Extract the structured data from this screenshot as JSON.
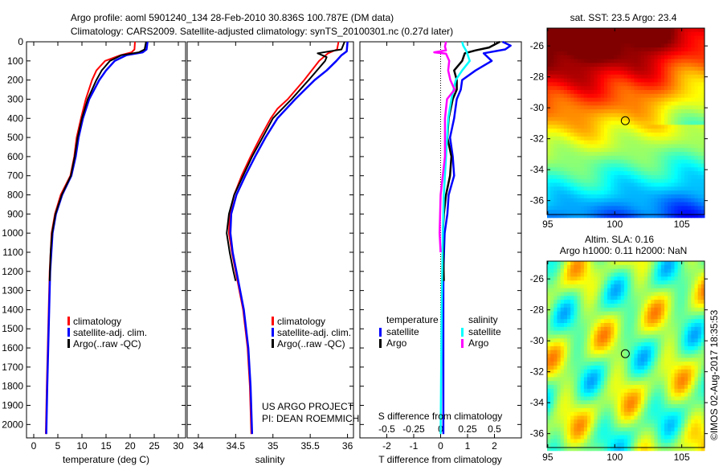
{
  "title_line1": "Argo profile: aoml 5901240_134 28-Feb-2010 30.836S 100.787E (DM data)",
  "title_line2": "Climatology: CARS2009. Satellite-adjusted climatology: synTS_20100301.nc (0.27d later)",
  "colors": {
    "climatology": "#ff0000",
    "satellite": "#0000ff",
    "argo": "#000000",
    "sal_satellite": "#00ffff",
    "sal_argo": "#ff00ff"
  },
  "chart_data": [
    {
      "type": "line",
      "name": "temperature-profile",
      "xlabel": "temperature (deg C)",
      "ylabel": "depth",
      "xlim": [
        -1.5,
        31.5
      ],
      "ylim": [
        2070,
        0
      ],
      "xticks": [
        0,
        5,
        10,
        15,
        20,
        25,
        30
      ],
      "yticks": [
        0,
        100,
        200,
        300,
        400,
        500,
        600,
        700,
        800,
        900,
        1000,
        1100,
        1200,
        1300,
        1400,
        1500,
        1600,
        1700,
        1800,
        1900,
        2000
      ],
      "legend": [
        "climatology",
        "satellite-adj. clim.",
        "Argo(..raw -QC)"
      ],
      "series": [
        {
          "name": "climatology",
          "color": "#ff0000",
          "points": [
            [
              0,
              21.0
            ],
            [
              40,
              20.9
            ],
            [
              55,
              20.3
            ],
            [
              70,
              18
            ],
            [
              100,
              14.8
            ],
            [
              150,
              13.0
            ],
            [
              200,
              12.1
            ],
            [
              300,
              10.8
            ],
            [
              400,
              9.8
            ],
            [
              500,
              8.9
            ],
            [
              600,
              8.4
            ],
            [
              700,
              7.6
            ],
            [
              800,
              5.6
            ],
            [
              900,
              4.4
            ],
            [
              1000,
              3.7
            ],
            [
              1200,
              3.3
            ],
            [
              1500,
              3.0
            ],
            [
              1800,
              2.7
            ],
            [
              2050,
              2.5
            ]
          ]
        },
        {
          "name": "satellite-adj. clim.",
          "color": "#0000ff",
          "points": [
            [
              0,
              23.6
            ],
            [
              40,
              23.4
            ],
            [
              55,
              22.6
            ],
            [
              70,
              19.2
            ],
            [
              100,
              16.8
            ],
            [
              150,
              15.0
            ],
            [
              200,
              13.6
            ],
            [
              300,
              11.5
            ],
            [
              400,
              10.2
            ],
            [
              500,
              9.3
            ],
            [
              600,
              8.7
            ],
            [
              700,
              7.8
            ],
            [
              800,
              5.9
            ],
            [
              900,
              4.6
            ],
            [
              1000,
              3.9
            ],
            [
              1200,
              3.4
            ],
            [
              1500,
              3.1
            ],
            [
              1800,
              2.8
            ],
            [
              2050,
              2.6
            ]
          ]
        },
        {
          "name": "Argo(..raw -QC)",
          "color": "#000000",
          "points": [
            [
              0,
              23.3
            ],
            [
              40,
              23.0
            ],
            [
              55,
              21.8
            ],
            [
              70,
              18.2
            ],
            [
              100,
              15.8
            ],
            [
              150,
              14.1
            ],
            [
              200,
              13.0
            ],
            [
              300,
              11.2
            ],
            [
              400,
              10.0
            ],
            [
              500,
              9.1
            ],
            [
              600,
              8.5
            ],
            [
              700,
              7.7
            ],
            [
              800,
              5.8
            ],
            [
              900,
              4.5
            ],
            [
              1000,
              3.8
            ],
            [
              1100,
              3.5
            ],
            [
              1250,
              3.3
            ]
          ]
        }
      ]
    },
    {
      "type": "line",
      "name": "salinity-profile",
      "xlabel": "salinity",
      "xlim": [
        33.85,
        36.08
      ],
      "ylim": [
        2070,
        0
      ],
      "xticks": [
        34,
        34.5,
        35,
        35.5,
        36
      ],
      "legend": [
        "climatology",
        "satellite-adj. clim.",
        "Argo(..raw -QC)"
      ],
      "annotation": [
        "US ARGO PROJECT",
        "PI: DEAN ROEMMICH"
      ],
      "series": [
        {
          "name": "climatology",
          "color": "#ff0000",
          "points": [
            [
              0,
              35.88
            ],
            [
              40,
              35.86
            ],
            [
              60,
              35.74
            ],
            [
              100,
              35.62
            ],
            [
              200,
              35.42
            ],
            [
              300,
              35.2
            ],
            [
              350,
              35.06
            ],
            [
              400,
              34.97
            ],
            [
              500,
              34.83
            ],
            [
              600,
              34.7
            ],
            [
              700,
              34.58
            ],
            [
              800,
              34.48
            ],
            [
              900,
              34.42
            ],
            [
              1000,
              34.41
            ],
            [
              1100,
              34.45
            ],
            [
              1200,
              34.5
            ],
            [
              1400,
              34.6
            ],
            [
              1600,
              34.66
            ],
            [
              1800,
              34.69
            ],
            [
              2050,
              34.71
            ]
          ]
        },
        {
          "name": "satellite-adj. clim.",
          "color": "#0000ff",
          "points": [
            [
              0,
              36.0
            ],
            [
              50,
              35.99
            ],
            [
              70,
              35.92
            ],
            [
              100,
              35.85
            ],
            [
              150,
              35.72
            ],
            [
              200,
              35.56
            ],
            [
              300,
              35.3
            ],
            [
              400,
              35.06
            ],
            [
              500,
              34.9
            ],
            [
              600,
              34.76
            ],
            [
              700,
              34.63
            ],
            [
              800,
              34.51
            ],
            [
              900,
              34.44
            ],
            [
              1000,
              34.43
            ],
            [
              1100,
              34.46
            ],
            [
              1200,
              34.51
            ],
            [
              1400,
              34.61
            ],
            [
              1600,
              34.67
            ],
            [
              1800,
              34.7
            ],
            [
              2050,
              34.72
            ]
          ]
        },
        {
          "name": "Argo(..raw -QC)",
          "color": "#000000",
          "points": [
            [
              0,
              35.96
            ],
            [
              40,
              35.92
            ],
            [
              60,
              35.6
            ],
            [
              80,
              35.72
            ],
            [
              100,
              35.7
            ],
            [
              200,
              35.48
            ],
            [
              300,
              35.25
            ],
            [
              400,
              35.0
            ],
            [
              500,
              34.86
            ],
            [
              600,
              34.72
            ],
            [
              700,
              34.6
            ],
            [
              800,
              34.48
            ],
            [
              900,
              34.41
            ],
            [
              1000,
              34.38
            ],
            [
              1100,
              34.42
            ],
            [
              1200,
              34.47
            ],
            [
              1250,
              34.5
            ]
          ]
        }
      ]
    },
    {
      "type": "line",
      "name": "difference-profile",
      "xlabel": "T difference from climatology",
      "x2label": "S difference from climatology",
      "xlim": [
        -3,
        3
      ],
      "x2lim": [
        -0.75,
        0.75
      ],
      "ylim": [
        2070,
        0
      ],
      "xticks": [
        -2,
        -1,
        0,
        1,
        2
      ],
      "x2ticks": [
        -0.5,
        -0.25,
        0,
        0.25,
        0.5
      ],
      "x2ticklabels": [
        "-0.5",
        "-0.25",
        "0",
        "0.25",
        "0.5"
      ],
      "legend": {
        "temperature_title": "temperature",
        "salinity_title": "salinity",
        "t_satellite": "satellite",
        "t_argo": "Argo",
        "s_satellite": "satellite",
        "s_argo": "Argo"
      },
      "series": [
        {
          "name": "T satellite",
          "axis": "T",
          "color": "#0000ff",
          "points": [
            [
              0,
              2.3
            ],
            [
              20,
              2.6
            ],
            [
              40,
              2.4
            ],
            [
              60,
              1.6
            ],
            [
              100,
              1.9
            ],
            [
              150,
              1.3
            ],
            [
              200,
              0.8
            ],
            [
              250,
              0.75
            ],
            [
              300,
              0.6
            ],
            [
              350,
              0.55
            ],
            [
              400,
              0.5
            ],
            [
              500,
              0.35
            ],
            [
              600,
              0.45
            ],
            [
              700,
              0.5
            ],
            [
              800,
              0.3
            ],
            [
              900,
              0.25
            ],
            [
              1000,
              0.15
            ],
            [
              1200,
              0.1
            ],
            [
              2050,
              0.1
            ]
          ]
        },
        {
          "name": "T Argo",
          "axis": "T",
          "color": "#000000",
          "points": [
            [
              0,
              2.2
            ],
            [
              30,
              1.8
            ],
            [
              45,
              1.3
            ],
            [
              60,
              0.9
            ],
            [
              100,
              0.8
            ],
            [
              150,
              0.5
            ],
            [
              200,
              0.6
            ],
            [
              250,
              0.6
            ],
            [
              300,
              0.45
            ],
            [
              400,
              0.3
            ],
            [
              500,
              0.25
            ],
            [
              600,
              0.4
            ],
            [
              700,
              0.35
            ],
            [
              800,
              0.2
            ],
            [
              900,
              0.12
            ],
            [
              1000,
              0.08
            ],
            [
              1150,
              0.1
            ],
            [
              1250,
              0.12
            ]
          ]
        },
        {
          "name": "S satellite",
          "axis": "S",
          "color": "#00ffff",
          "points": [
            [
              0,
              0.2
            ],
            [
              20,
              0.21
            ],
            [
              50,
              0.24
            ],
            [
              100,
              0.27
            ],
            [
              150,
              0.2
            ],
            [
              200,
              0.14
            ],
            [
              300,
              0.1
            ],
            [
              400,
              0.07
            ],
            [
              600,
              0.05
            ],
            [
              800,
              0.03
            ],
            [
              1000,
              0.02
            ],
            [
              1400,
              0.01
            ],
            [
              2050,
              0.0
            ]
          ]
        },
        {
          "name": "S Argo",
          "axis": "S",
          "color": "#ff00ff",
          "points": [
            [
              0,
              0.05
            ],
            [
              25,
              0.04
            ],
            [
              45,
              0.05
            ],
            [
              55,
              -0.06
            ],
            [
              62,
              0.05
            ],
            [
              100,
              0.08
            ],
            [
              150,
              0.07
            ],
            [
              200,
              0.09
            ],
            [
              250,
              0.13
            ],
            [
              300,
              0.06
            ],
            [
              400,
              0.04
            ],
            [
              600,
              0.04
            ],
            [
              800,
              0.0
            ],
            [
              1000,
              -0.01
            ],
            [
              1100,
              0.0
            ]
          ]
        }
      ]
    },
    {
      "type": "heatmap",
      "name": "sst-map",
      "title": "sat. SST: 23.5 Argo: 23.4",
      "xlim": [
        94.95,
        106.7
      ],
      "ylim": [
        -36.9,
        -24.85
      ],
      "xticks": [
        95,
        100,
        105
      ],
      "yticks": [
        -26,
        -28,
        -30,
        -32,
        -34,
        -36
      ],
      "marker": {
        "lon": 100.787,
        "lat": -30.836
      }
    },
    {
      "type": "heatmap",
      "name": "sla-map",
      "title_line1": "Altim. SLA: 0.16",
      "title_line2": "Argo h1000: 0.11 h2000: NaN",
      "xlim": [
        94.95,
        106.7
      ],
      "ylim": [
        -36.9,
        -24.85
      ],
      "xticks": [
        95,
        100,
        105
      ],
      "yticks": [
        -26,
        -28,
        -30,
        -32,
        -34,
        -36
      ],
      "marker": {
        "lon": 100.787,
        "lat": -30.836
      }
    }
  ],
  "footer_stamp": "©IMOS 02-Aug-2017 18:35:53"
}
